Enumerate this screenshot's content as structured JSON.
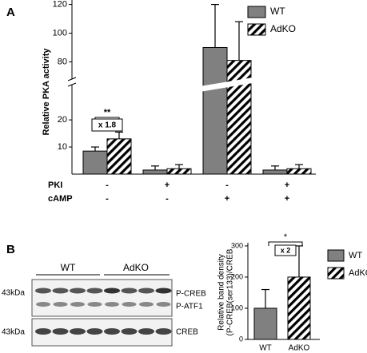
{
  "panel_labels": [
    "A",
    "B"
  ],
  "chart_data": [
    {
      "type": "bar",
      "y_label": "Relative PKA activity",
      "series": [
        {
          "name": "WT",
          "color": "#808080",
          "values": [
            8.5,
            1.5,
            90,
            1.5
          ],
          "errors": [
            1.5,
            1.5,
            30,
            1.5
          ]
        },
        {
          "name": "AdKO",
          "color": "hatch",
          "values": [
            13,
            2,
            81,
            2
          ],
          "errors": [
            2.5,
            1.5,
            27,
            1.5
          ]
        }
      ],
      "conditions": [
        {
          "label": "PKI",
          "values": [
            "-",
            "+",
            "-",
            "+"
          ]
        },
        {
          "label": "cAMP",
          "values": [
            "-",
            "-",
            "+",
            "+"
          ]
        }
      ],
      "ylim": [
        0,
        122
      ],
      "ybreak": [
        33,
        68
      ],
      "yticks": [
        10,
        20,
        80,
        100,
        120
      ],
      "annotations": [
        "**",
        "x 1.8"
      ],
      "legend": "top-right"
    },
    {
      "type": "bar",
      "y_label": [
        "Relative band density",
        "(P-CREB(ser133)/CREB"
      ],
      "categories": [
        "WT",
        "AdKO"
      ],
      "values": [
        100,
        200
      ],
      "errors": [
        60,
        100
      ],
      "colors": [
        "#808080",
        "hatch"
      ],
      "ylim": [
        0,
        310
      ],
      "yticks": [
        0,
        100,
        200,
        300
      ],
      "annotations": [
        "*",
        "x 2"
      ],
      "legend": "right"
    }
  ],
  "blot": {
    "group_labels": [
      "WT",
      "AdKO"
    ],
    "marker_labels": [
      "43kDa",
      "43kDa"
    ],
    "band_labels": [
      "P-CREB",
      "P-ATF1",
      "CREB"
    ]
  }
}
